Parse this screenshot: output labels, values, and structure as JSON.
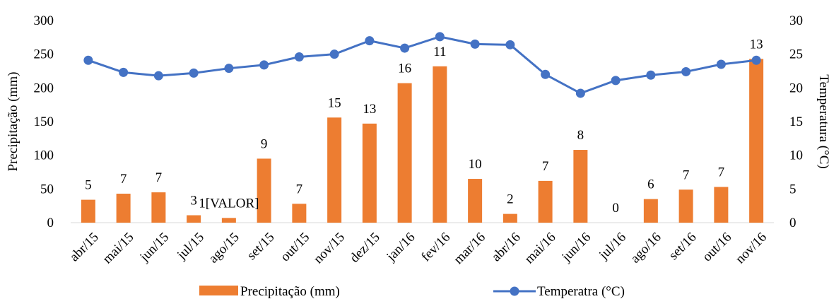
{
  "chart_data": {
    "type": "bar+line",
    "categories": [
      "abr/15",
      "mai/15",
      "jun/15",
      "jul/15",
      "ago/15",
      "set/15",
      "out/15",
      "nov/15",
      "dez/15",
      "jan/16",
      "fev/16",
      "mar/16",
      "abr/16",
      "mai/16",
      "jun/16",
      "jul/16",
      "ago/16",
      "set/16",
      "out/16",
      "nov/16"
    ],
    "series": [
      {
        "name": "Precipitação (mm)",
        "type": "bar",
        "axis": "left",
        "color": "#ED7D31",
        "values": [
          34,
          43,
          45,
          11,
          7,
          95,
          28,
          156,
          147,
          207,
          232,
          65,
          13,
          62,
          108,
          0,
          35,
          49,
          53,
          243
        ]
      },
      {
        "name": "Temperatra (°C)",
        "type": "line",
        "axis": "right",
        "color": "#4472C4",
        "values": [
          24.1,
          22.3,
          21.8,
          22.2,
          22.9,
          23.4,
          24.6,
          25.0,
          27.0,
          25.9,
          27.6,
          26.5,
          26.4,
          22.0,
          19.2,
          21.1,
          21.9,
          22.4,
          23.5,
          24.1
        ]
      }
    ],
    "bar_labels": [
      "5",
      "7",
      "7",
      "3",
      "1[VALOR]",
      "9",
      "7",
      "15",
      "13",
      "16",
      "11",
      "10",
      "2",
      "7",
      "8",
      "0",
      "6",
      "7",
      "7",
      "13"
    ],
    "ylabel": "Precipitação (mm)",
    "y2label": "Temperatura (°C)",
    "ylim": [
      0,
      300
    ],
    "y2lim": [
      0,
      30
    ],
    "yticks": [
      "0",
      "50",
      "100",
      "150",
      "200",
      "250",
      "300"
    ],
    "y2ticks": [
      "0",
      "5",
      "10",
      "15",
      "20",
      "25",
      "30"
    ],
    "grid": false,
    "legend_position": "bottom"
  }
}
